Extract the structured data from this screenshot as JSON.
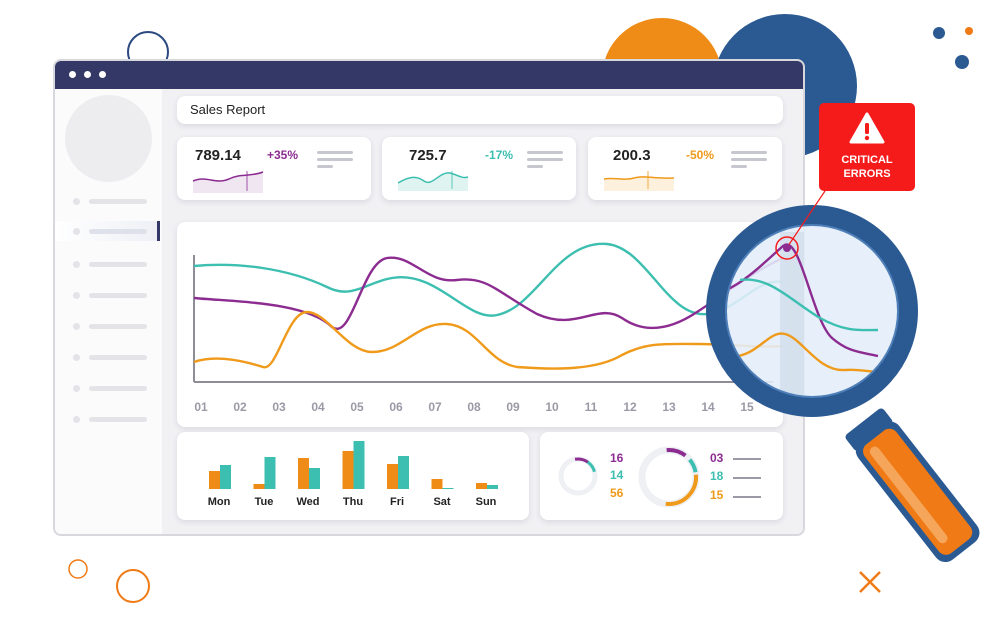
{
  "report": {
    "title": "Sales Report"
  },
  "stats": [
    {
      "value": "789.14",
      "change": "+35%",
      "color": "#8c2c91"
    },
    {
      "value": "725.7",
      "change": "-17%",
      "color": "#3cbfb0"
    },
    {
      "value": "200.3",
      "change": "-50%",
      "color": "#ef9a1a"
    }
  ],
  "line_chart": {
    "x_ticks": [
      "01",
      "02",
      "03",
      "04",
      "05",
      "06",
      "07",
      "08",
      "09",
      "10",
      "11",
      "12",
      "13",
      "14",
      "15"
    ],
    "series_colors": [
      "#3cbfb0",
      "#8c2c91",
      "#ef9a1a"
    ]
  },
  "bar_chart": {
    "days": [
      "Mon",
      "Tue",
      "Wed",
      "Thu",
      "Fri",
      "Sat",
      "Sun"
    ],
    "orange_values": [
      18,
      5,
      31,
      38,
      25,
      10,
      6
    ],
    "teal_values": [
      24,
      32,
      21,
      48,
      33,
      1,
      4
    ],
    "colors": {
      "orange": "#ef8c17",
      "teal": "#3cbfb0"
    }
  },
  "donuts": {
    "small": [
      {
        "value": "16",
        "color": "#8c2c91"
      },
      {
        "value": "14",
        "color": "#3cbfb0"
      },
      {
        "value": "56",
        "color": "#ef9a1a"
      }
    ],
    "large": [
      {
        "value": "03",
        "color": "#8c2c91"
      },
      {
        "value": "18",
        "color": "#3cbfb0"
      },
      {
        "value": "15",
        "color": "#ef9a1a"
      }
    ]
  },
  "alert": {
    "line1": "CRITICAL",
    "line2": "ERRORS",
    "icon": "warning-icon",
    "color": "#f51b1b"
  },
  "magnifier": {
    "icon": "magnifying-glass-icon",
    "handle_color": "#ef7a16",
    "frame_color": "#2b5a93"
  }
}
